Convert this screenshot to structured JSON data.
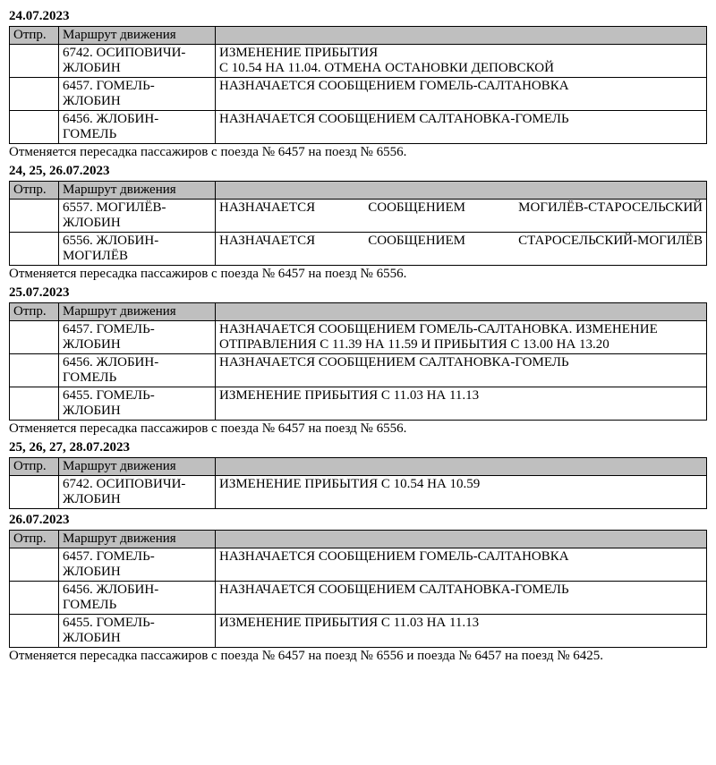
{
  "headers": {
    "col1": "Отпр.",
    "col2": "Маршрут движения",
    "col3": ""
  },
  "sections": [
    {
      "date": "24.07.2023",
      "rows": [
        {
          "route": "6742. ОСИПОВИЧИ-ЖЛОБИН",
          "info": "ИЗМЕНЕНИЕ ПРИБЫТИЯ\nС 10.54 НА 11.04. ОТМЕНА ОСТАНОВКИ ДЕПОВСКОЙ"
        },
        {
          "route": "6457. ГОМЕЛЬ-ЖЛОБИН",
          "info": "НАЗНАЧАЕТСЯ СООБЩЕНИЕМ ГОМЕЛЬ-САЛТАНОВКА"
        },
        {
          "route": "6456. ЖЛОБИН-ГОМЕЛЬ",
          "info": "НАЗНАЧАЕТСЯ СООБЩЕНИЕМ САЛТАНОВКА-ГОМЕЛЬ"
        }
      ],
      "note": "Отменяется пересадка пассажиров с поезда № 6457 на поезд № 6556."
    },
    {
      "date": "24, 25, 26.07.2023",
      "rows": [
        {
          "route": "6557. МОГИЛЁВ-ЖЛОБИН",
          "info": "НАЗНАЧАЕТСЯ СООБЩЕНИЕМ МОГИЛЁВ-СТАРОСЕЛЬСКИЙ",
          "justify": true
        },
        {
          "route": "6556. ЖЛОБИН-МОГИЛЁВ",
          "info": "НАЗНАЧАЕТСЯ СООБЩЕНИЕМ СТАРОСЕЛЬСКИЙ-МОГИЛЁВ",
          "justify": true
        }
      ],
      "note": "Отменяется пересадка пассажиров с поезда № 6457 на поезд № 6556."
    },
    {
      "date": "25.07.2023",
      "rows": [
        {
          "route": "6457. ГОМЕЛЬ-ЖЛОБИН",
          "info": "НАЗНАЧАЕТСЯ СООБЩЕНИЕМ ГОМЕЛЬ-САЛТАНОВКА. ИЗМЕНЕНИЕ ОТПРАВЛЕНИЯ С 11.39 НА 11.59 И ПРИБЫТИЯ С 13.00 НА 13.20"
        },
        {
          "route": "6456. ЖЛОБИН-ГОМЕЛЬ",
          "info": "НАЗНАЧАЕТСЯ СООБЩЕНИЕМ САЛТАНОВКА-ГОМЕЛЬ"
        },
        {
          "route": "6455. ГОМЕЛЬ-ЖЛОБИН",
          "info": "ИЗМЕНЕНИЕ ПРИБЫТИЯ С 11.03 НА 11.13"
        }
      ],
      "note": "Отменяется пересадка пассажиров с поезда № 6457 на поезд № 6556."
    },
    {
      "date": "25, 26, 27, 28.07.2023",
      "rows": [
        {
          "route": "6742. ОСИПОВИЧИ-ЖЛОБИН",
          "info": "ИЗМЕНЕНИЕ ПРИБЫТИЯ С 10.54 НА 10.59"
        }
      ]
    },
    {
      "date": "26.07.2023",
      "rows": [
        {
          "route": "6457. ГОМЕЛЬ-ЖЛОБИН",
          "info": "НАЗНАЧАЕТСЯ СООБЩЕНИЕМ ГОМЕЛЬ-САЛТАНОВКА"
        },
        {
          "route": "6456. ЖЛОБИН-ГОМЕЛЬ",
          "info": "НАЗНАЧАЕТСЯ СООБЩЕНИЕМ САЛТАНОВКА-ГОМЕЛЬ"
        },
        {
          "route": "6455. ГОМЕЛЬ-ЖЛОБИН",
          "info": "ИЗМЕНЕНИЕ ПРИБЫТИЯ С 11.03 НА 11.13"
        }
      ],
      "note": "Отменяется пересадка пассажиров с поезда № 6457 на поезд № 6556 и поезда № 6457 на поезд № 6425."
    }
  ]
}
